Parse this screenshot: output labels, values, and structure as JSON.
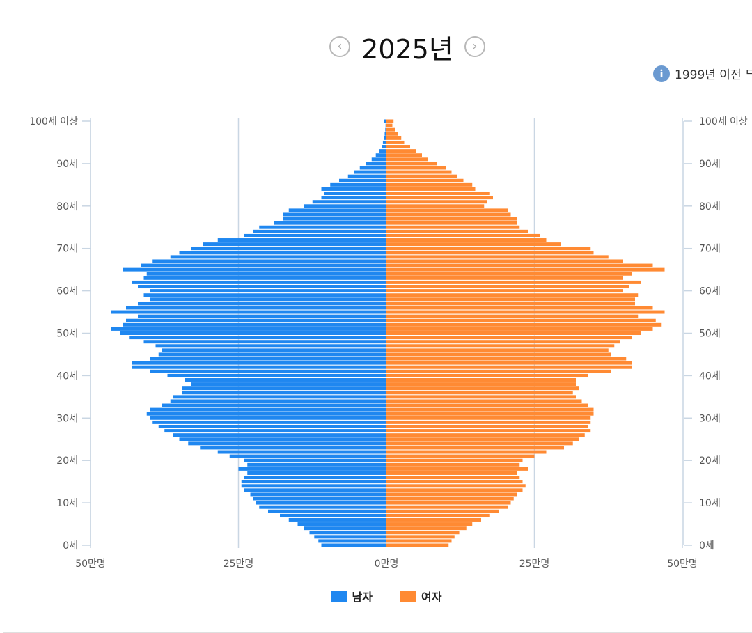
{
  "header": {
    "year_title": "2025년",
    "prev_icon": "chevron-left-icon",
    "next_icon": "chevron-right-icon"
  },
  "info_note": {
    "icon": "info-icon",
    "text": "1999년 이전 ᄃ"
  },
  "colors": {
    "male": "#1f87f0",
    "female": "#ff8a33",
    "grid": "#c9d6e3",
    "tick_label": "#555555"
  },
  "chart_data": {
    "type": "bar",
    "orientation": "horizontal-butterfly",
    "title": "2025년",
    "units": "만명",
    "xlim": [
      -50,
      50
    ],
    "x_tick_labels": [
      "50만명",
      "25만명",
      "0만명",
      "25만명",
      "50만명"
    ],
    "y_tick_labels": [
      "0세",
      "10세",
      "20세",
      "30세",
      "40세",
      "50세",
      "60세",
      "70세",
      "80세",
      "90세",
      "100세 이상"
    ],
    "ages": [
      0,
      1,
      2,
      3,
      4,
      5,
      6,
      7,
      8,
      9,
      10,
      11,
      12,
      13,
      14,
      15,
      16,
      17,
      18,
      19,
      20,
      21,
      22,
      23,
      24,
      25,
      26,
      27,
      28,
      29,
      30,
      31,
      32,
      33,
      34,
      35,
      36,
      37,
      38,
      39,
      40,
      41,
      42,
      43,
      44,
      45,
      46,
      47,
      48,
      49,
      50,
      51,
      52,
      53,
      54,
      55,
      56,
      57,
      58,
      59,
      60,
      61,
      62,
      63,
      64,
      65,
      66,
      67,
      68,
      69,
      70,
      71,
      72,
      73,
      74,
      75,
      76,
      77,
      78,
      79,
      80,
      81,
      82,
      83,
      84,
      85,
      86,
      87,
      88,
      89,
      90,
      91,
      92,
      93,
      94,
      95,
      96,
      97,
      98,
      99,
      100
    ],
    "series": [
      {
        "name": "남자",
        "values": [
          11.0,
          11.5,
          12.2,
          13.0,
          14.0,
          15.0,
          16.5,
          18.0,
          20.0,
          21.5,
          22.0,
          22.5,
          23.0,
          24.0,
          24.5,
          24.5,
          24.0,
          23.5,
          25.0,
          23.5,
          24.0,
          26.5,
          28.5,
          31.5,
          33.5,
          35.0,
          36.0,
          37.5,
          38.5,
          39.5,
          40.0,
          40.5,
          40.0,
          38.0,
          36.5,
          36.0,
          34.5,
          34.5,
          33.0,
          34.0,
          37.0,
          40.0,
          43.0,
          43.0,
          40.0,
          38.5,
          38.0,
          39.0,
          41.0,
          43.5,
          45.0,
          46.5,
          44.5,
          44.0,
          42.0,
          46.5,
          44.0,
          42.0,
          40.0,
          41.0,
          40.0,
          42.0,
          43.0,
          41.0,
          40.5,
          44.5,
          41.5,
          39.5,
          36.5,
          35.0,
          33.0,
          31.0,
          28.5,
          24.0,
          22.5,
          21.5,
          19.0,
          17.5,
          17.5,
          16.5,
          14.0,
          12.5,
          11.0,
          10.5,
          11.0,
          9.5,
          8.0,
          6.5,
          5.5,
          4.5,
          3.5,
          2.5,
          1.8,
          1.2,
          0.8,
          0.6,
          0.4,
          0.3,
          0.2,
          0.15,
          0.4
        ]
      },
      {
        "name": "여자",
        "values": [
          10.5,
          11.0,
          11.5,
          12.3,
          13.5,
          14.5,
          16.0,
          17.5,
          19.0,
          20.5,
          21.0,
          21.5,
          22.0,
          23.0,
          23.5,
          23.0,
          22.5,
          22.0,
          24.0,
          22.5,
          23.0,
          25.0,
          27.0,
          30.0,
          31.5,
          32.5,
          33.5,
          34.5,
          34.0,
          34.5,
          34.5,
          35.0,
          35.0,
          34.0,
          33.0,
          32.0,
          31.5,
          32.5,
          32.0,
          32.0,
          34.0,
          38.0,
          41.5,
          41.5,
          40.5,
          38.0,
          37.5,
          38.5,
          39.5,
          41.5,
          43.0,
          45.0,
          46.5,
          45.5,
          42.5,
          47.0,
          45.0,
          42.0,
          42.0,
          42.5,
          40.0,
          41.0,
          43.0,
          40.0,
          41.5,
          47.0,
          45.0,
          40.0,
          37.5,
          35.0,
          34.5,
          29.5,
          27.0,
          26.0,
          24.0,
          22.5,
          22.0,
          22.0,
          21.0,
          20.5,
          16.5,
          17.0,
          18.0,
          17.5,
          15.0,
          14.5,
          13.0,
          12.0,
          11.0,
          10.0,
          8.5,
          7.0,
          6.0,
          5.0,
          4.0,
          3.0,
          2.5,
          2.0,
          1.5,
          1.0,
          1.2
        ]
      }
    ],
    "legend": [
      "남자",
      "여자"
    ],
    "legend_position": "bottom-center",
    "grid": true
  }
}
